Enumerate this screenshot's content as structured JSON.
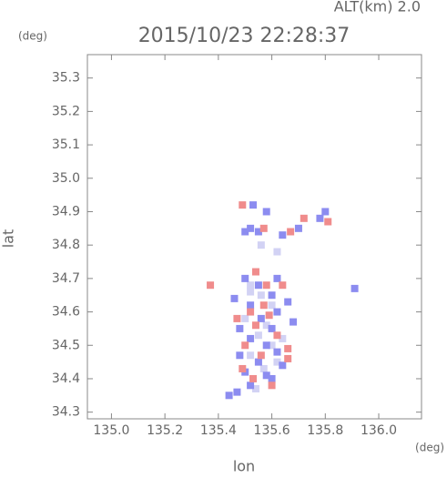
{
  "chart_data": {
    "type": "scatter",
    "title": "2015/10/23 22:28:37",
    "annotation": "ALT(km) 2.0",
    "y_unit": "(deg)",
    "x_unit": "(deg)",
    "xlabel": "lon",
    "ylabel": "lat",
    "xlim": [
      134.91,
      136.16
    ],
    "ylim": [
      34.28,
      35.37
    ],
    "xticks": [
      {
        "value": 135.0,
        "label": "135.0"
      },
      135.2,
      135.4,
      135.6,
      135.8,
      {
        "value": 136.0,
        "label": "136.0"
      }
    ],
    "yticks": [
      34.3,
      34.4,
      34.5,
      34.6,
      34.7,
      34.8,
      34.9,
      {
        "value": 35.0,
        "label": "35.0"
      },
      35.1,
      35.2,
      35.3
    ],
    "series": [
      {
        "color": "#d2d2f4",
        "x": [
          135.52,
          135.56,
          135.6,
          135.5,
          135.55,
          135.6,
          135.52,
          135.57,
          135.62,
          135.54,
          135.56,
          135.62,
          135.52,
          135.58,
          135.64
        ],
        "values": [
          34.68,
          34.65,
          34.62,
          34.58,
          34.53,
          34.5,
          34.47,
          34.43,
          34.45,
          34.37,
          34.8,
          34.78,
          34.66,
          34.56,
          34.52
        ]
      },
      {
        "color": "#8c8cf0",
        "x": [
          135.53,
          135.58,
          135.5,
          135.52,
          135.55,
          135.64,
          135.7,
          135.78,
          135.8,
          135.91,
          135.5,
          135.55,
          135.6,
          135.52,
          135.56,
          135.62,
          135.66,
          135.48,
          135.52,
          135.58,
          135.62,
          135.64,
          135.55,
          135.5,
          135.52,
          135.6,
          135.47,
          135.44,
          135.58,
          135.46,
          135.68,
          135.6,
          135.48,
          135.62
        ],
        "values": [
          34.92,
          34.9,
          34.84,
          34.85,
          34.84,
          34.83,
          34.85,
          34.88,
          34.9,
          34.67,
          34.7,
          34.68,
          34.65,
          34.62,
          34.58,
          34.6,
          34.63,
          34.55,
          34.52,
          34.5,
          34.48,
          34.44,
          34.45,
          34.42,
          34.38,
          34.4,
          34.36,
          34.35,
          34.41,
          34.64,
          34.57,
          34.55,
          34.47,
          34.7
        ]
      },
      {
        "color": "#f08c8c",
        "x": [
          135.49,
          135.57,
          135.67,
          135.72,
          135.81,
          135.54,
          135.58,
          135.64,
          135.52,
          135.57,
          135.54,
          135.62,
          135.5,
          135.56,
          135.66,
          135.53,
          135.6,
          135.49,
          135.37,
          135.47,
          135.59,
          135.66
        ],
        "values": [
          34.92,
          34.85,
          34.84,
          34.88,
          34.87,
          34.72,
          34.68,
          34.68,
          34.6,
          34.62,
          34.56,
          34.53,
          34.5,
          34.47,
          34.49,
          34.4,
          34.38,
          34.43,
          34.68,
          34.58,
          34.59,
          34.46
        ]
      }
    ]
  }
}
